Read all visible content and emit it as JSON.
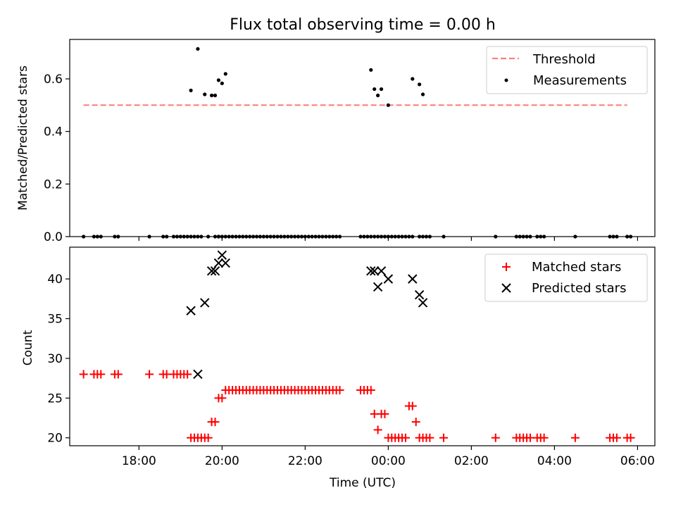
{
  "figure": {
    "title": "Flux total observing time = 0.00 h"
  },
  "colors": {
    "threshold": "#ff7f7f",
    "measurements": "#000000",
    "matched": "#ff0000",
    "predicted": "#000000"
  },
  "chart_data": [
    {
      "type": "scatter",
      "title": "Flux total observing time = 0.00 h",
      "xlabel": "",
      "ylabel": "Matched/Predicted stars",
      "x_axis": "time (hours since 00:00 UTC, ticks shown as HH:MM)",
      "xlim": [
        "16:20",
        "06:25"
      ],
      "ylim": [
        0,
        0.75
      ],
      "yticks": [
        "0.0",
        "0.2",
        "0.4",
        "0.6"
      ],
      "ytick_values": [
        0,
        0.2,
        0.4,
        0.6
      ],
      "grid": false,
      "legend": "upper right",
      "series": [
        {
          "name": "Threshold",
          "style": "dashed-line",
          "x": [
            "16:40",
            "05:45"
          ],
          "y": [
            0.5,
            0.5
          ]
        },
        {
          "name": "Measurements",
          "style": "dot",
          "x": [
            "16:40",
            "16:55",
            "17:00",
            "17:05",
            "17:25",
            "17:30",
            "18:15",
            "18:35",
            "18:40",
            "18:50",
            "18:55",
            "19:00",
            "19:05",
            "19:10",
            "19:15",
            "19:20",
            "19:25",
            "19:30",
            "19:40",
            "19:50",
            "19:55",
            "19:55",
            "20:00",
            "20:05",
            "20:10",
            "20:15",
            "20:20",
            "20:25",
            "20:30",
            "20:35",
            "20:40",
            "20:45",
            "20:50",
            "20:55",
            "21:00",
            "21:05",
            "21:10",
            "21:15",
            "21:20",
            "21:25",
            "21:30",
            "21:35",
            "21:40",
            "21:45",
            "21:50",
            "21:55",
            "22:00",
            "22:05",
            "22:10",
            "22:15",
            "22:20",
            "22:25",
            "22:30",
            "22:35",
            "22:40",
            "22:45",
            "22:50",
            "23:20",
            "23:25",
            "23:30",
            "23:35",
            "23:40",
            "23:45",
            "23:50",
            "23:55",
            "00:00",
            "00:05",
            "00:10",
            "00:15",
            "00:20",
            "00:25",
            "00:30",
            "00:35",
            "00:45",
            "00:50",
            "00:55",
            "01:00",
            "01:20",
            "02:35",
            "03:05",
            "03:10",
            "03:15",
            "03:20",
            "03:25",
            "03:35",
            "03:40",
            "03:45",
            "04:30",
            "05:20",
            "05:25",
            "05:30",
            "05:45",
            "05:50",
            "19:15",
            "19:25",
            "19:35",
            "19:45",
            "19:50",
            "19:55",
            "20:00",
            "20:05",
            "23:35",
            "23:40",
            "23:45",
            "23:50",
            "00:00",
            "00:35",
            "00:45",
            "00:50"
          ],
          "y": [
            0,
            0,
            0,
            0,
            0,
            0,
            0,
            0,
            0,
            0,
            0,
            0,
            0,
            0,
            0,
            0,
            0,
            0,
            0,
            0,
            0,
            0,
            0,
            0,
            0,
            0,
            0,
            0,
            0,
            0,
            0,
            0,
            0,
            0,
            0,
            0,
            0,
            0,
            0,
            0,
            0,
            0,
            0,
            0,
            0,
            0,
            0,
            0,
            0,
            0,
            0,
            0,
            0,
            0,
            0,
            0,
            0,
            0,
            0,
            0,
            0,
            0,
            0,
            0,
            0,
            0,
            0,
            0,
            0,
            0,
            0,
            0,
            0,
            0,
            0,
            0,
            0,
            0,
            0,
            0,
            0,
            0,
            0,
            0,
            0,
            0,
            0,
            0,
            0,
            0,
            0,
            0,
            0,
            0.556,
            0.714,
            0.541,
            0.537,
            0.537,
            0.595,
            0.583,
            0.619,
            0.634,
            0.561,
            0.537,
            0.561,
            0.5,
            0.6,
            0.579,
            0.541
          ]
        }
      ]
    },
    {
      "type": "scatter",
      "title": "",
      "xlabel": "Time (UTC)",
      "ylabel": "Count",
      "xlim": [
        "16:20",
        "06:25"
      ],
      "xticks": [
        "18:00",
        "20:00",
        "22:00",
        "00:00",
        "02:00",
        "04:00",
        "06:00"
      ],
      "ylim": [
        19,
        44
      ],
      "yticks": [
        "20",
        "25",
        "30",
        "35",
        "40"
      ],
      "ytick_values": [
        20,
        25,
        30,
        35,
        40
      ],
      "grid": false,
      "legend": "upper right",
      "series": [
        {
          "name": "Matched stars",
          "style": "plus",
          "points": [
            [
              "16:40",
              28
            ],
            [
              "16:55",
              28
            ],
            [
              "17:00",
              28
            ],
            [
              "17:05",
              28
            ],
            [
              "17:25",
              28
            ],
            [
              "17:30",
              28
            ],
            [
              "18:15",
              28
            ],
            [
              "18:35",
              28
            ],
            [
              "18:40",
              28
            ],
            [
              "18:50",
              28
            ],
            [
              "18:55",
              28
            ],
            [
              "19:00",
              28
            ],
            [
              "19:05",
              28
            ],
            [
              "19:10",
              28
            ],
            [
              "19:15",
              20
            ],
            [
              "19:20",
              20
            ],
            [
              "19:25",
              20
            ],
            [
              "19:30",
              20
            ],
            [
              "19:35",
              20
            ],
            [
              "19:40",
              20
            ],
            [
              "19:45",
              22
            ],
            [
              "19:50",
              22
            ],
            [
              "19:55",
              25
            ],
            [
              "20:00",
              25
            ],
            [
              "20:05",
              26
            ],
            [
              "20:10",
              26
            ],
            [
              "20:15",
              26
            ],
            [
              "20:20",
              26
            ],
            [
              "20:25",
              26
            ],
            [
              "20:30",
              26
            ],
            [
              "20:35",
              26
            ],
            [
              "20:40",
              26
            ],
            [
              "20:45",
              26
            ],
            [
              "20:50",
              26
            ],
            [
              "20:55",
              26
            ],
            [
              "21:00",
              26
            ],
            [
              "21:05",
              26
            ],
            [
              "21:10",
              26
            ],
            [
              "21:15",
              26
            ],
            [
              "21:20",
              26
            ],
            [
              "21:25",
              26
            ],
            [
              "21:30",
              26
            ],
            [
              "21:35",
              26
            ],
            [
              "21:40",
              26
            ],
            [
              "21:45",
              26
            ],
            [
              "21:50",
              26
            ],
            [
              "21:55",
              26
            ],
            [
              "22:00",
              26
            ],
            [
              "22:05",
              26
            ],
            [
              "22:10",
              26
            ],
            [
              "22:15",
              26
            ],
            [
              "22:20",
              26
            ],
            [
              "22:25",
              26
            ],
            [
              "22:30",
              26
            ],
            [
              "22:35",
              26
            ],
            [
              "22:40",
              26
            ],
            [
              "22:45",
              26
            ],
            [
              "22:50",
              26
            ],
            [
              "23:20",
              26
            ],
            [
              "23:25",
              26
            ],
            [
              "23:30",
              26
            ],
            [
              "23:35",
              26
            ],
            [
              "23:40",
              23
            ],
            [
              "23:45",
              21
            ],
            [
              "23:50",
              23
            ],
            [
              "23:55",
              23
            ],
            [
              "00:00",
              20
            ],
            [
              "00:05",
              20
            ],
            [
              "00:10",
              20
            ],
            [
              "00:15",
              20
            ],
            [
              "00:20",
              20
            ],
            [
              "00:25",
              20
            ],
            [
              "00:30",
              24
            ],
            [
              "00:35",
              24
            ],
            [
              "00:40",
              22
            ],
            [
              "00:45",
              20
            ],
            [
              "00:50",
              20
            ],
            [
              "00:55",
              20
            ],
            [
              "01:00",
              20
            ],
            [
              "01:20",
              20
            ],
            [
              "02:35",
              20
            ],
            [
              "03:05",
              20
            ],
            [
              "03:10",
              20
            ],
            [
              "03:15",
              20
            ],
            [
              "03:20",
              20
            ],
            [
              "03:25",
              20
            ],
            [
              "03:35",
              20
            ],
            [
              "03:40",
              20
            ],
            [
              "03:45",
              20
            ],
            [
              "04:30",
              20
            ],
            [
              "05:20",
              20
            ],
            [
              "05:25",
              20
            ],
            [
              "05:30",
              20
            ],
            [
              "05:45",
              20
            ],
            [
              "05:50",
              20
            ]
          ]
        },
        {
          "name": "Predicted stars",
          "style": "x",
          "points": [
            [
              "19:15",
              36
            ],
            [
              "19:25",
              28
            ],
            [
              "19:35",
              37
            ],
            [
              "19:45",
              41
            ],
            [
              "19:50",
              41
            ],
            [
              "19:55",
              42
            ],
            [
              "20:00",
              43
            ],
            [
              "20:05",
              42
            ],
            [
              "23:35",
              41
            ],
            [
              "23:40",
              41
            ],
            [
              "23:45",
              39
            ],
            [
              "23:50",
              41
            ],
            [
              "00:00",
              40
            ],
            [
              "00:35",
              40
            ],
            [
              "00:45",
              38
            ],
            [
              "00:50",
              37
            ]
          ]
        }
      ]
    }
  ]
}
